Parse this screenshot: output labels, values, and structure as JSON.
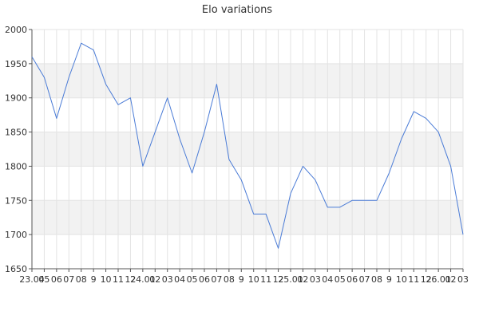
{
  "chart_data": {
    "type": "line",
    "title": "Elo variations",
    "xlabel": "",
    "ylabel": "",
    "ylim": [
      1650,
      2000
    ],
    "yticks": [
      1650,
      1700,
      1750,
      1800,
      1850,
      1900,
      1950,
      2000
    ],
    "x_tick_labels": [
      "23.04",
      "05",
      "06",
      "07",
      "08",
      "9",
      "10",
      "11",
      "12",
      "24.01",
      "02",
      "03",
      "04",
      "05",
      "06",
      "07",
      "08",
      "9",
      "10",
      "11",
      "12",
      "25.01",
      "02",
      "03",
      "04",
      "05",
      "06",
      "07",
      "08",
      "9",
      "10",
      "11",
      "12",
      "26.01",
      "02",
      "03"
    ],
    "grid": true,
    "legend": "none",
    "series": [
      {
        "values": [
          1960,
          1930,
          1870,
          1930,
          1980,
          1970,
          1920,
          1890,
          1900,
          1800,
          1850,
          1900,
          1840,
          1790,
          1850,
          1920,
          1810,
          1780,
          1730,
          1730,
          1680,
          1760,
          1800,
          1780,
          1740,
          1740,
          1750,
          1750,
          1750,
          1790,
          1840,
          1880,
          1870,
          1850,
          1800,
          1700
        ],
        "color": "#4a7bd6"
      }
    ],
    "colors": {
      "band": "#f2f2f2",
      "grid": "#e3e3e3",
      "axis": "#555555",
      "text": "#333333"
    }
  }
}
